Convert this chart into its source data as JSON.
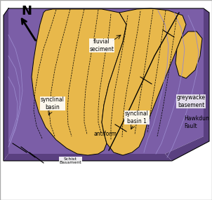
{
  "bg_color": "#ffffff",
  "purple_color": "#7B5EA7",
  "yellow_color": "#E8B84B",
  "line_color": "#000000",
  "fold_line_color": "#9988cc",
  "labels": {
    "fluvial_sediment": "fluvial\nseciment",
    "synclinal_basin_left": "synclinal\nbasin",
    "synclinal_basin_right": "synclinal\nbasin 1",
    "antiform": "antiform",
    "greywacke": "greywacke\nbasement",
    "hawkdun": "Hawkdun\nFault",
    "schist": "Schist\nBasament",
    "N": "N"
  },
  "fig_width": 3.02,
  "fig_height": 2.86,
  "dpi": 100
}
